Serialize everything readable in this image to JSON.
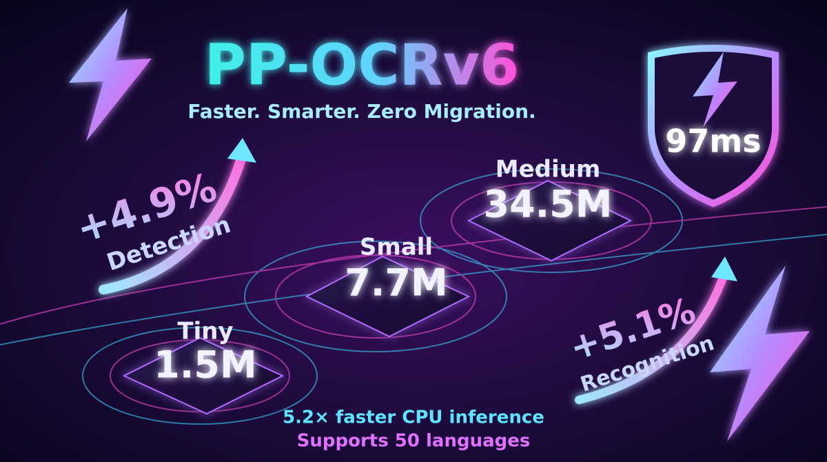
{
  "header": {
    "title": "PP-OCRv6",
    "subtitle": "Faster. Smarter. Zero Migration."
  },
  "badge": {
    "value": "97ms"
  },
  "stats": [
    {
      "value": "+4.9%",
      "label": "Detection"
    },
    {
      "value": "+5.1%",
      "label": "Recognition"
    }
  ],
  "models": [
    {
      "name": "Tiny",
      "size": "1.5M"
    },
    {
      "name": "Small",
      "size": "7.7M"
    },
    {
      "name": "Medium",
      "size": "34.5M"
    }
  ],
  "footer": {
    "lines": [
      "5.2× faster CPU inference",
      "Supports 50 languages"
    ]
  }
}
